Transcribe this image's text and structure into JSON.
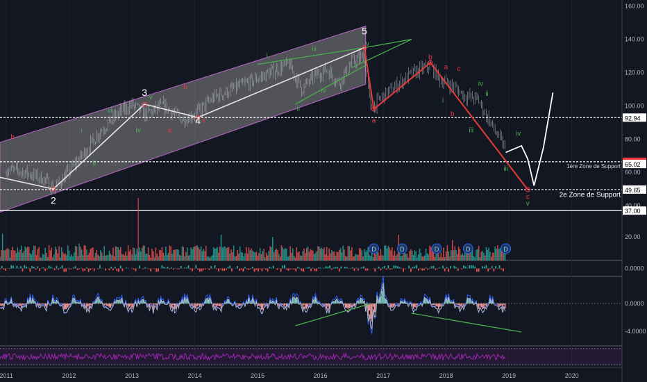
{
  "chart_data": {
    "type": "line",
    "title": "",
    "panels": {
      "price": {
        "y_axis_ticks": [
          "160.00",
          "140.00",
          "120.00",
          "100.00",
          "80.00",
          "60.00",
          "40.00"
        ],
        "ylim": [
          35,
          162
        ],
        "series": [
          {
            "values_note": "",
            "x": [
              2011.0,
              2011.3,
              2011.6,
              2011.75,
              2011.9,
              2012.2,
              2012.5,
              2012.8,
              2013.0,
              2013.2,
              2013.5,
              2013.8,
              2014.0,
              2014.3,
              2014.6,
              2014.9,
              2015.1,
              2015.3,
              2015.5,
              2015.7,
              2015.9,
              2016.1,
              2016.3,
              2016.5,
              2016.7,
              2016.8,
              2016.9,
              2017.0,
              2017.2,
              2017.4,
              2017.6,
              2017.75,
              2017.9,
              2018.1,
              2018.3,
              2018.5,
              2018.7,
              2018.85,
              2018.95
            ],
            "y": [
              62,
              60,
              56,
              50,
              56,
              70,
              85,
              96,
              101,
              95,
              100,
              92,
              95,
              105,
              110,
              115,
              118,
              122,
              125,
              110,
              118,
              122,
              114,
              126,
              130,
              98,
              102,
              106,
              112,
              118,
              122,
              124,
              116,
              112,
              106,
              104,
              90,
              80,
              74
            ]
          }
        ],
        "wave_path": {
          "x": [
            2010.9,
            2011.75,
            2013.2,
            2014.05,
            2016.7,
            2016.85,
            2017.75,
            2019.3
          ],
          "y": [
            57,
            50,
            101,
            93,
            135,
            98,
            126,
            49.6
          ]
        },
        "projection": {
          "x": [
            2018.95,
            2019.2,
            2019.3,
            2019.4,
            2019.55,
            2019.7
          ],
          "y": [
            72,
            76,
            68,
            52,
            75,
            108
          ]
        },
        "channel": {
          "x_start": 2010.9,
          "x_end": 2016.72,
          "upper": [
            78,
            148
          ],
          "lower": [
            36,
            113
          ]
        },
        "h_levels": [
          {
            "value": 92.94,
            "label": "92.94",
            "style": "dashed"
          },
          {
            "value": 66.39,
            "label": "66.39",
            "style": "dashed",
            "tag_color": "#f23645"
          },
          {
            "value": 65.02,
            "label": "65.02",
            "style": "none"
          },
          {
            "value": 49.65,
            "label": "49.65",
            "style": "dashed"
          },
          {
            "value": 37.0,
            "label": "37.00",
            "style": "solid"
          }
        ],
        "annotations": [
          {
            "text": "1ère Zone de Support"
          },
          {
            "text": "2e Zone de Support"
          }
        ],
        "wave_labels": [
          {
            "text": "b",
            "x": 2011.1,
            "y": 80,
            "color": "#f23645"
          },
          {
            "text": "2",
            "x": 2011.75,
            "y": 41,
            "color": "#ffffff"
          },
          {
            "text": "ii",
            "x": 2012.4,
            "y": 64,
            "color": "#4caf50"
          },
          {
            "text": "i",
            "x": 2012.2,
            "y": 84,
            "color": "#4caf50"
          },
          {
            "text": "iii",
            "x": 2012.65,
            "y": 96,
            "color": "#4caf50"
          },
          {
            "text": "iv",
            "x": 2013.1,
            "y": 84,
            "color": "#4caf50"
          },
          {
            "text": "3",
            "x": 2013.2,
            "y": 106,
            "color": "#ffffff"
          },
          {
            "text": "v",
            "x": 2013.3,
            "y": 104,
            "color": "#4caf50"
          },
          {
            "text": "a",
            "x": 2013.6,
            "y": 84,
            "color": "#f23645"
          },
          {
            "text": "b",
            "x": 2013.85,
            "y": 110,
            "color": "#f23645"
          },
          {
            "text": "4",
            "x": 2014.05,
            "y": 89,
            "color": "#ffffff"
          },
          {
            "text": "c",
            "x": 2014.15,
            "y": 90,
            "color": "#f23645"
          },
          {
            "text": "i",
            "x": 2015.15,
            "y": 129,
            "color": "#4caf50"
          },
          {
            "text": "ii",
            "x": 2015.65,
            "y": 97,
            "color": "#4caf50"
          },
          {
            "text": "iii",
            "x": 2015.9,
            "y": 133,
            "color": "#4caf50"
          },
          {
            "text": "iv",
            "x": 2016.05,
            "y": 108,
            "color": "#4caf50"
          },
          {
            "text": "5",
            "x": 2016.7,
            "y": 143,
            "color": "#ffffff"
          },
          {
            "text": "v",
            "x": 2016.75,
            "y": 136,
            "color": "#4caf50"
          },
          {
            "text": "a",
            "x": 2016.85,
            "y": 90,
            "color": "#f23645"
          },
          {
            "text": "b",
            "x": 2017.75,
            "y": 128,
            "color": "#f23645"
          },
          {
            "text": "a",
            "x": 2018.0,
            "y": 122,
            "color": "#f23645"
          },
          {
            "text": "c",
            "x": 2018.2,
            "y": 121,
            "color": "#f23645"
          },
          {
            "text": "i",
            "x": 2017.95,
            "y": 102,
            "color": "#4caf50"
          },
          {
            "text": "b",
            "x": 2018.1,
            "y": 94,
            "color": "#f23645"
          },
          {
            "text": "iii",
            "x": 2018.4,
            "y": 84,
            "color": "#4caf50"
          },
          {
            "text": "iv",
            "x": 2018.55,
            "y": 112,
            "color": "#4caf50"
          },
          {
            "text": "ii",
            "x": 2018.65,
            "y": 106,
            "color": "#4caf50"
          },
          {
            "text": "iii",
            "x": 2018.95,
            "y": 61,
            "color": "#4caf50"
          },
          {
            "text": "iv",
            "x": 2019.15,
            "y": 82,
            "color": "#4caf50"
          },
          {
            "text": "c",
            "x": 2019.3,
            "y": 44,
            "color": "#f23645"
          },
          {
            "text": "v",
            "x": 2019.3,
            "y": 40,
            "color": "#4caf50"
          }
        ]
      },
      "volume": {
        "y_axis_ticks": [
          "20.00"
        ],
        "dividend_marks": [
          "D",
          "D",
          "D",
          "D",
          "D"
        ],
        "dividend_x": [
          2016.85,
          2017.3,
          2017.85,
          2018.35,
          2018.95
        ]
      },
      "macd": {
        "y_axis_ticks": [
          "0.0000"
        ]
      },
      "oscillator": {
        "y_axis_ticks": [
          "0.0000",
          "-4.0000"
        ]
      },
      "rsi": {
        "y_axis_ticks": []
      }
    },
    "x_axis": {
      "labels": [
        "2011",
        "2012",
        "2013",
        "2014",
        "2015",
        "2016",
        "2017",
        "2018",
        "2019",
        "2020"
      ],
      "xlim": [
        2010.9,
        2020.8
      ]
    },
    "colors": {
      "background": "#131722",
      "up": "#26a69a",
      "down": "#ef5350",
      "wave": "#e6e6e6",
      "channel_fill": "#9e9e9e",
      "trend_green": "#4caf50",
      "red_wave": "#e53935",
      "rsi": "#9c27b0"
    }
  }
}
